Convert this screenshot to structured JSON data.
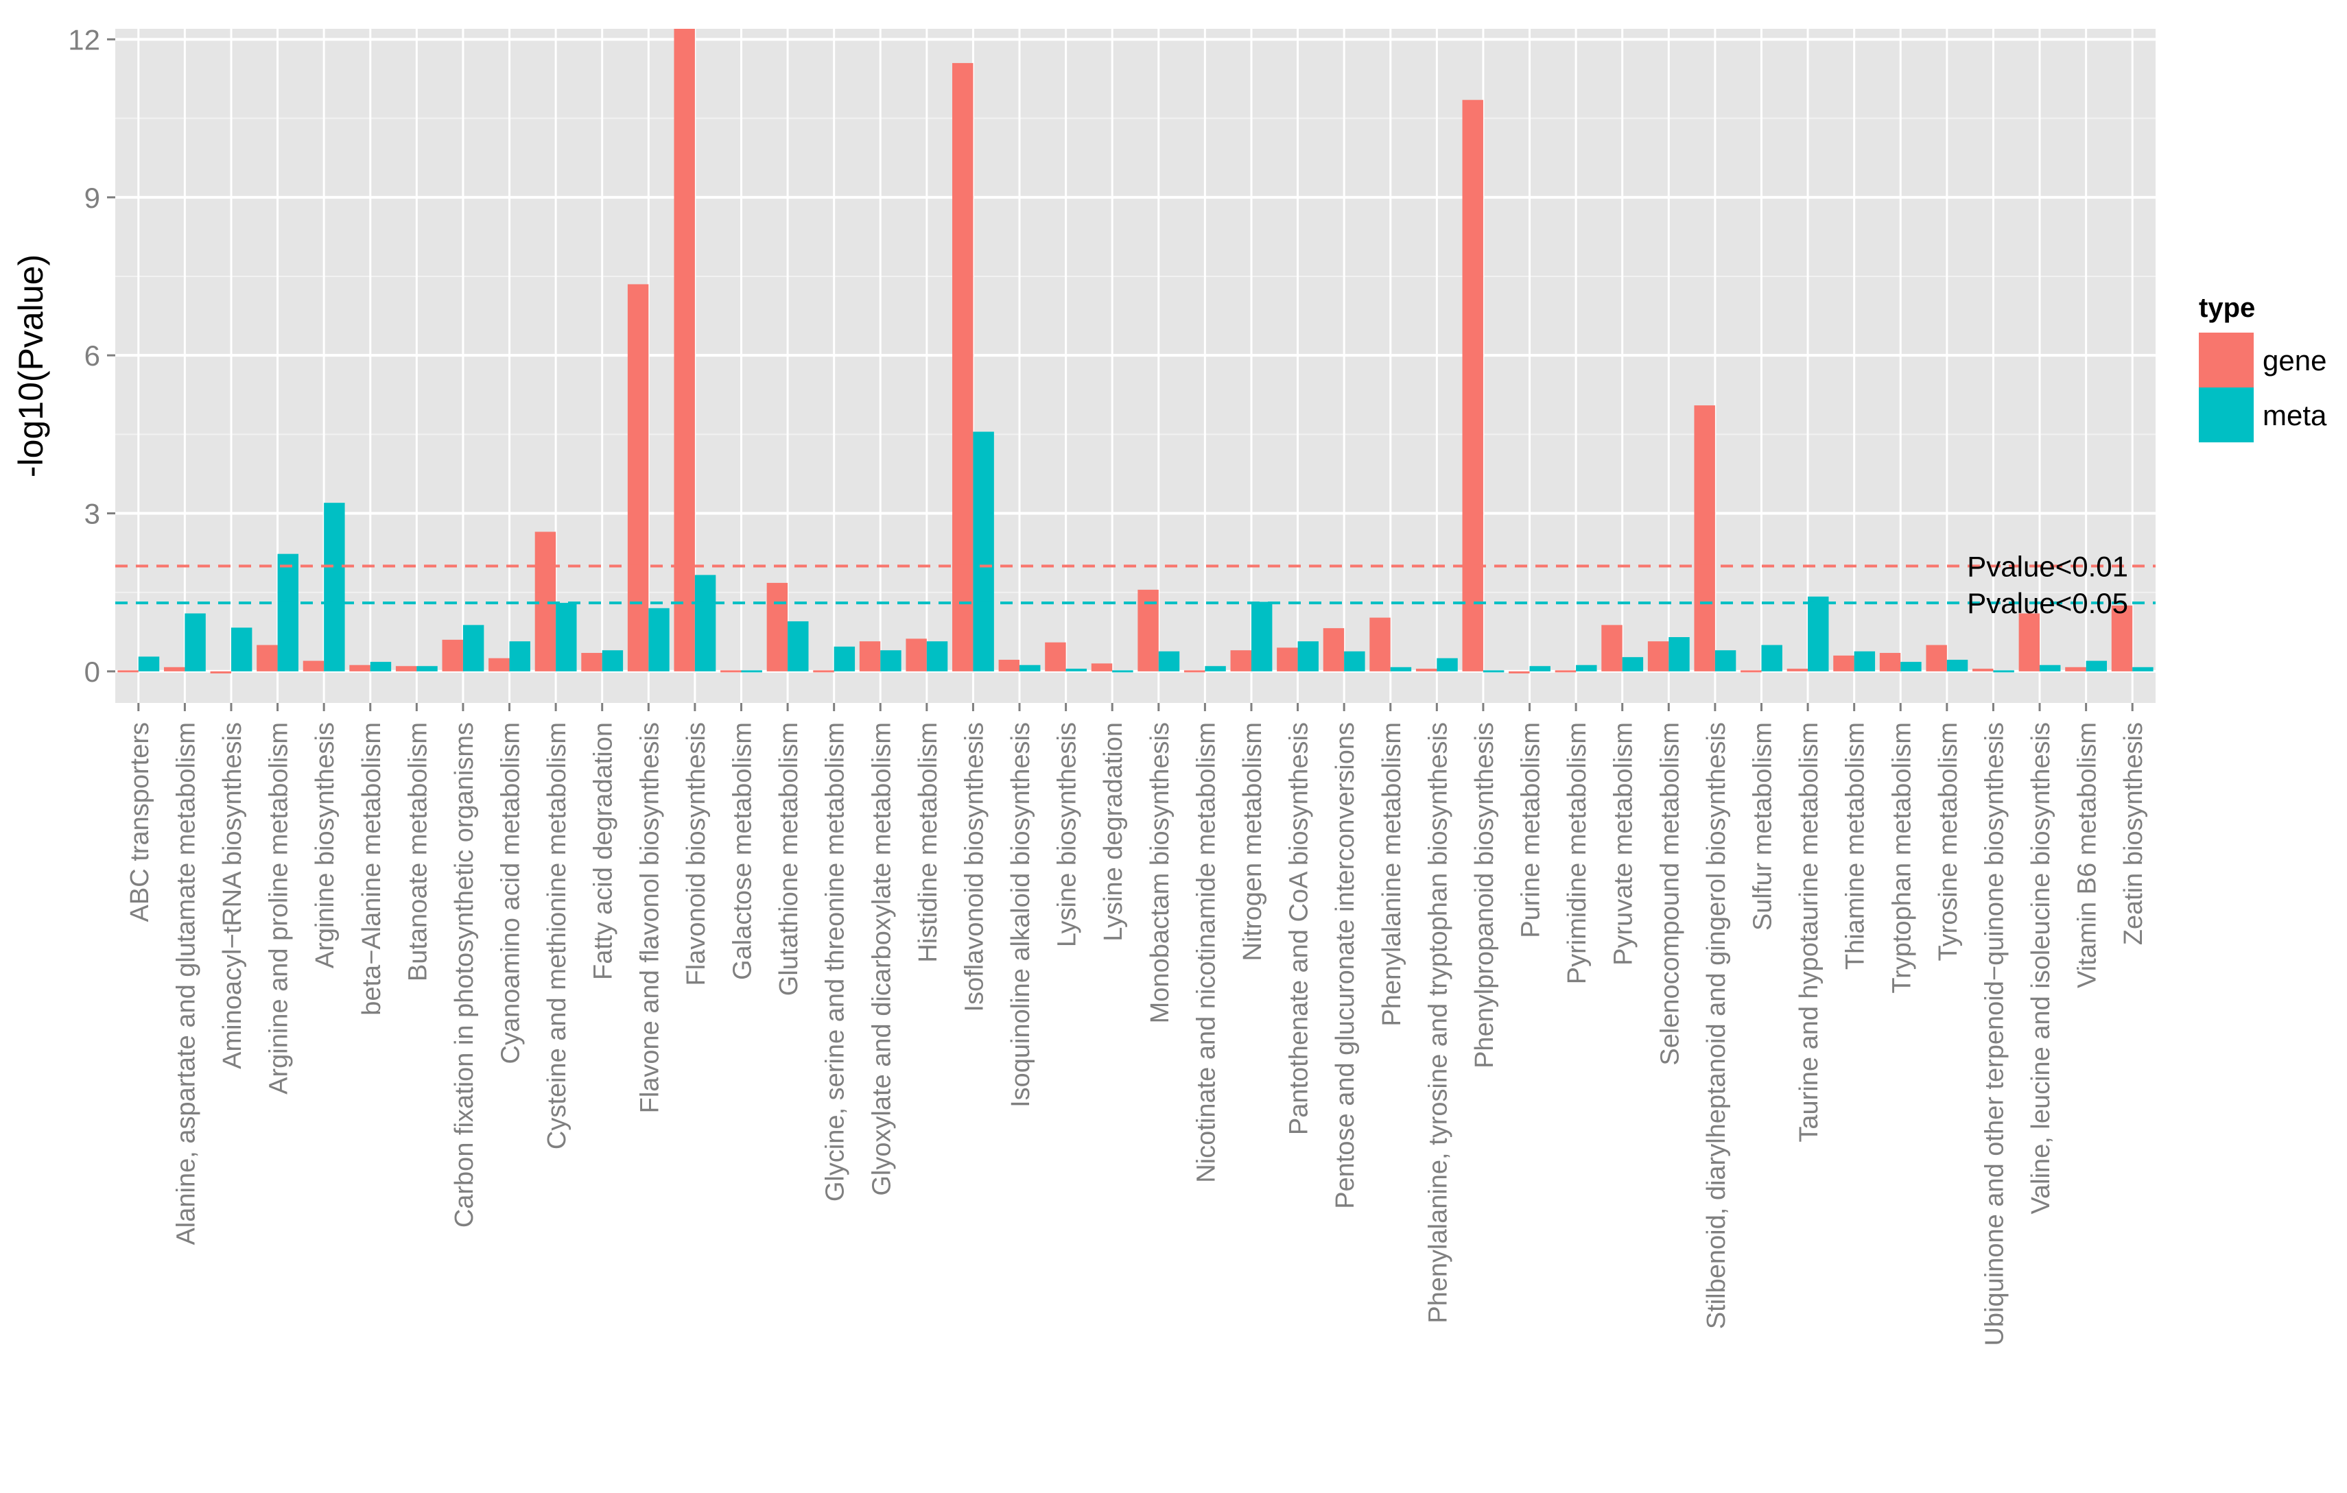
{
  "chart_data": {
    "type": "bar",
    "title": "",
    "xlabel": "",
    "ylabel": "-log10(Pvalue)",
    "ylim": [
      -0.6,
      12.2
    ],
    "yticks": [
      0,
      3,
      6,
      9,
      12
    ],
    "grid": true,
    "legend": {
      "title": "type",
      "position": "right"
    },
    "categories": [
      "ABC transporters",
      "Alanine, aspartate and glutamate metabolism",
      "Aminoacyl−tRNA biosynthesis",
      "Arginine and proline metabolism",
      "Arginine biosynthesis",
      "beta−Alanine metabolism",
      "Butanoate metabolism",
      "Carbon fixation in photosynthetic organisms",
      "Cyanoamino acid metabolism",
      "Cysteine and methionine metabolism",
      "Fatty acid degradation",
      "Flavone and flavonol biosynthesis",
      "Flavonoid biosynthesis",
      "Galactose metabolism",
      "Glutathione metabolism",
      "Glycine, serine and threonine metabolism",
      "Glyoxylate and dicarboxylate metabolism",
      "Histidine metabolism",
      "Isoflavonoid biosynthesis",
      "Isoquinoline alkaloid biosynthesis",
      "Lysine biosynthesis",
      "Lysine degradation",
      "Monobactam biosynthesis",
      "Nicotinate and nicotinamide metabolism",
      "Nitrogen metabolism",
      "Pantothenate and CoA biosynthesis",
      "Pentose and glucuronate interconversions",
      "Phenylalanine metabolism",
      "Phenylalanine, tyrosine and tryptophan biosynthesis",
      "Phenylpropanoid biosynthesis",
      "Purine metabolism",
      "Pyrimidine metabolism",
      "Pyruvate metabolism",
      "Selenocompound metabolism",
      "Stilbenoid, diarylheptanoid and gingerol biosynthesis",
      "Sulfur metabolism",
      "Taurine and hypotaurine metabolism",
      "Thiamine metabolism",
      "Tryptophan metabolism",
      "Tyrosine metabolism",
      "Ubiquinone and other terpenoid−quinone biosynthesis",
      "Valine, leucine and isoleucine biosynthesis",
      "Vitamin B6 metabolism",
      "Zeatin biosynthesis"
    ],
    "series": [
      {
        "name": "gene",
        "color": "#F8766D",
        "values": [
          0.02,
          0.08,
          0,
          0.5,
          0.2,
          0.12,
          0.1,
          0.6,
          0.25,
          2.65,
          0.35,
          7.35,
          12.2,
          0.02,
          1.68,
          0.02,
          0.57,
          0.62,
          11.55,
          0.22,
          0.55,
          0.15,
          1.55,
          0.02,
          0.4,
          0.45,
          0.82,
          1.02,
          0.05,
          10.85,
          0,
          0.02,
          0.88,
          0.57,
          5.05,
          0.02,
          0.05,
          0.3,
          0.35,
          0.5,
          0.05,
          1.1,
          0.08,
          1.25
        ]
      },
      {
        "name": "meta",
        "color": "#00BFC4",
        "values": [
          0.28,
          1.1,
          0.83,
          2.23,
          3.2,
          0.18,
          0.1,
          0.88,
          0.57,
          1.3,
          0.4,
          1.2,
          1.83,
          0.02,
          0.95,
          0.47,
          0.4,
          0.57,
          4.55,
          0.12,
          0.05,
          0.02,
          0.38,
          0.1,
          1.32,
          0.57,
          0.38,
          0.08,
          0.25,
          0.02,
          0.1,
          0.12,
          0.27,
          0.65,
          0.4,
          0.5,
          1.42,
          0.38,
          0.18,
          0.22,
          0.02,
          0.12,
          0.2,
          0.08
        ]
      }
    ],
    "reference_lines": [
      {
        "y": 2.0,
        "label": "Pvalue<0.01",
        "color": "#F8766D"
      },
      {
        "y": 1.3,
        "label": "Pvalue<0.05",
        "color": "#00BFC4"
      }
    ],
    "panel_color": "#E5E5E5",
    "grid_color": "#FFFFFF"
  }
}
